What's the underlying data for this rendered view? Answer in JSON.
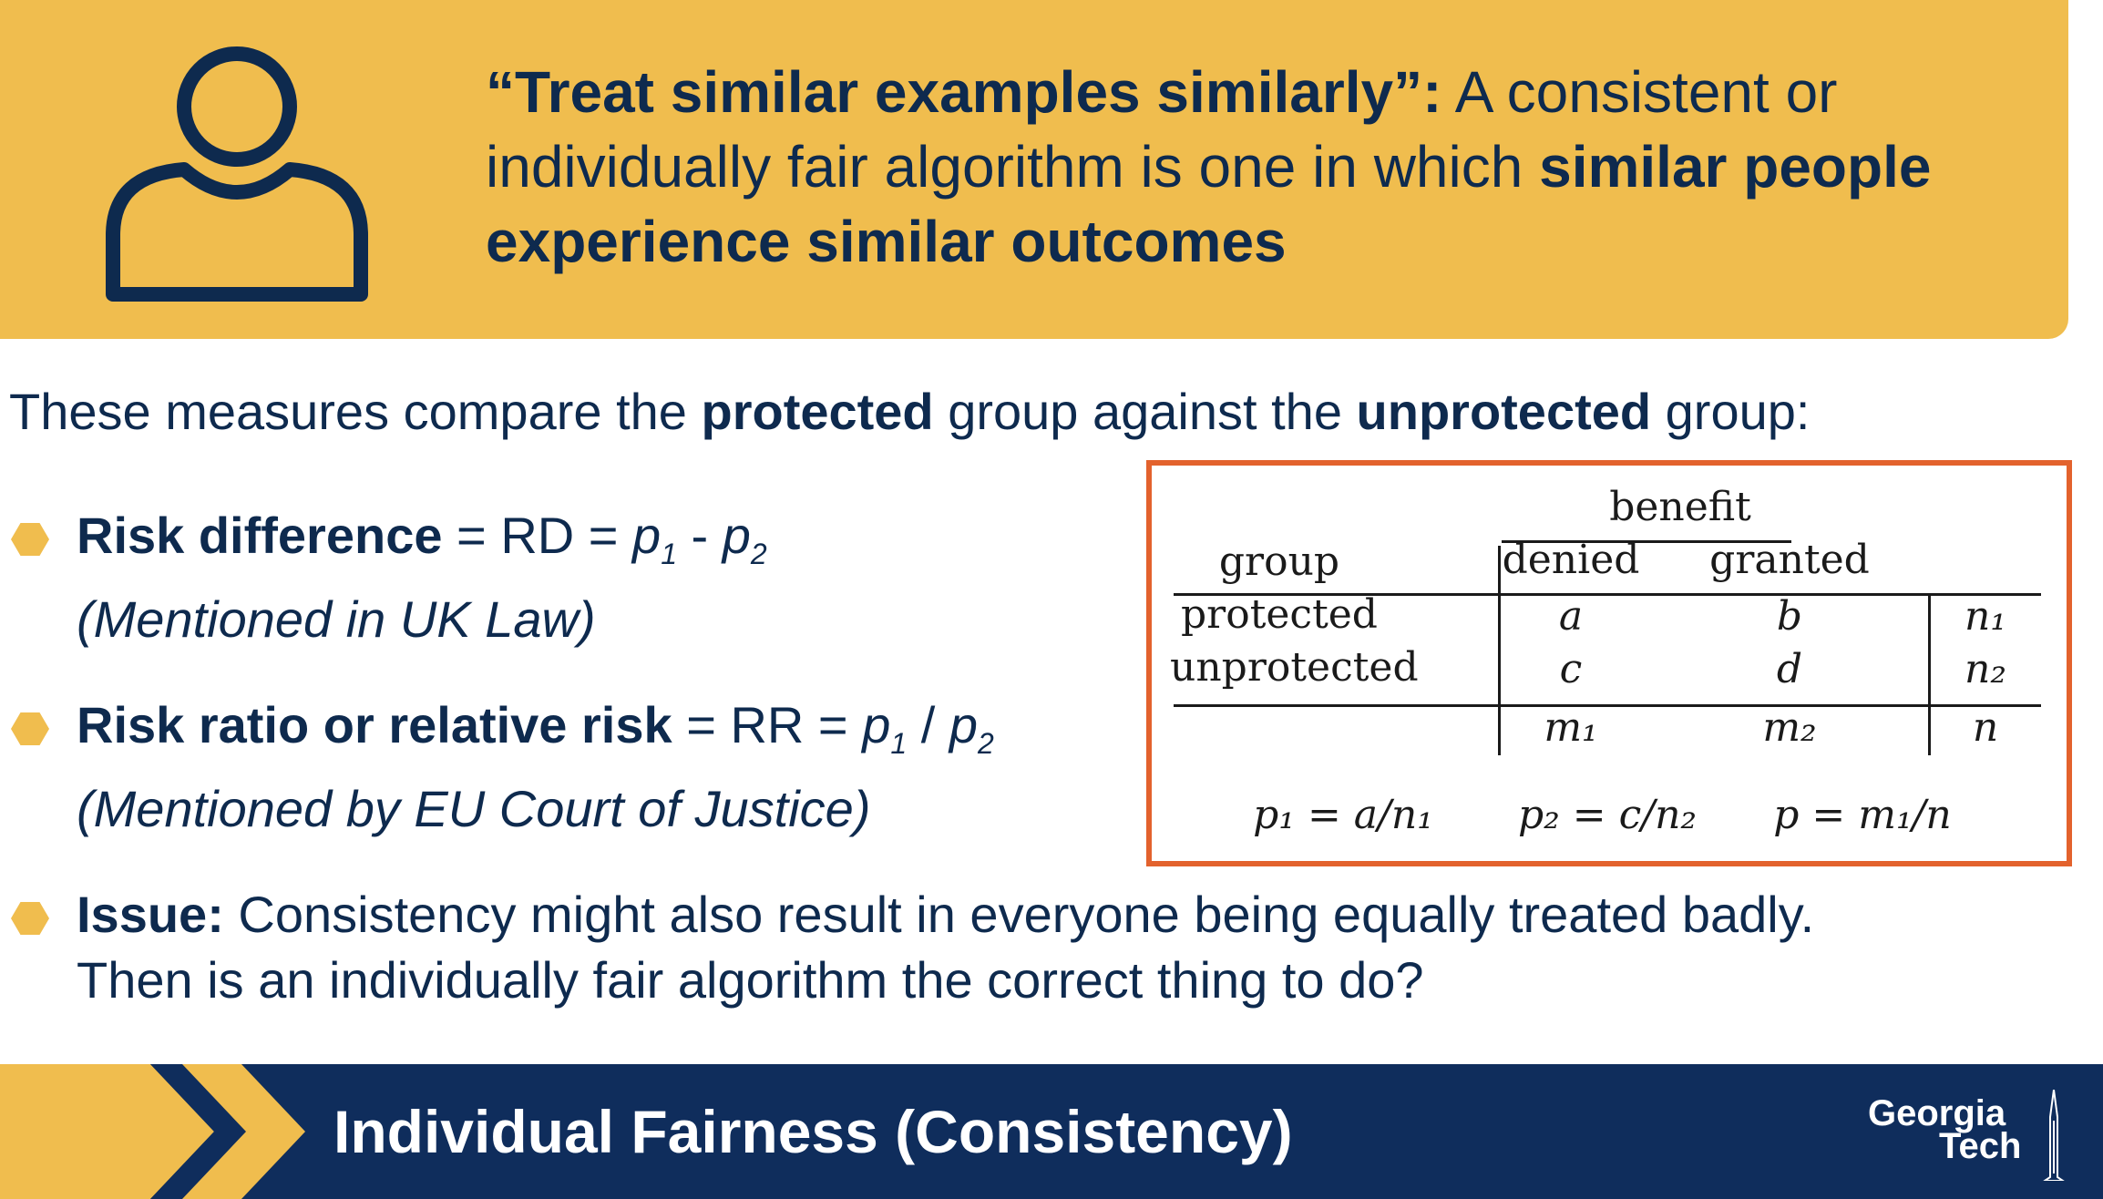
{
  "banner": {
    "quote": "“Treat similar examples similarly”:",
    "text_a": " A consistent or individually fair algorithm is one in which ",
    "bold_b": "similar people experience similar outcomes"
  },
  "intro": {
    "a": "These measures compare the ",
    "b": "protected",
    "c": " group against the ",
    "d": "unprotected",
    "e": " group:"
  },
  "bullets": [
    {
      "term": "Risk difference",
      "eq_a": " = RD = ",
      "eq_b": "p",
      "eq_c": "1",
      "eq_d": " - ",
      "eq_e": "p",
      "eq_f": "2",
      "note": "(Mentioned in UK Law)"
    },
    {
      "term": "Risk ratio or relative risk",
      "eq_a": " = RR = ",
      "eq_b": "p",
      "eq_c": "1",
      "eq_d": " / ",
      "eq_e": "p",
      "eq_f": "2",
      "note": "(Mentioned by EU Court of Justice)"
    },
    {
      "term": "Issue:",
      "line1": " Consistency might also result in everyone being equally treated badly.",
      "line2": "Then is an individually fair algorithm the correct thing to do?"
    }
  ],
  "table": {
    "benefit": "benefit",
    "group": "group",
    "denied": "denied",
    "granted": "granted",
    "rows": [
      {
        "label": "protected",
        "c1": "a",
        "c2": "b",
        "total": "n₁"
      },
      {
        "label": "unprotected",
        "c1": "c",
        "c2": "d",
        "total": "n₂"
      }
    ],
    "totals": {
      "c1": "m₁",
      "c2": "m₂",
      "total": "n"
    },
    "formulas": [
      "p₁ = a/n₁",
      "p₂ = c/n₂",
      "p = m₁/n"
    ]
  },
  "footer": {
    "title": "Individual Fairness (Consistency)",
    "logo_line1": "Georgia",
    "logo_line2": "Tech"
  },
  "colors": {
    "banner": "#f0bd4e",
    "navy": "#0e2a4e",
    "footer": "#0f2d5c",
    "table_border": "#e3622d"
  },
  "icons": [
    "person-icon",
    "hexagon-bullet-icon",
    "chevron-icon",
    "tower-icon"
  ]
}
